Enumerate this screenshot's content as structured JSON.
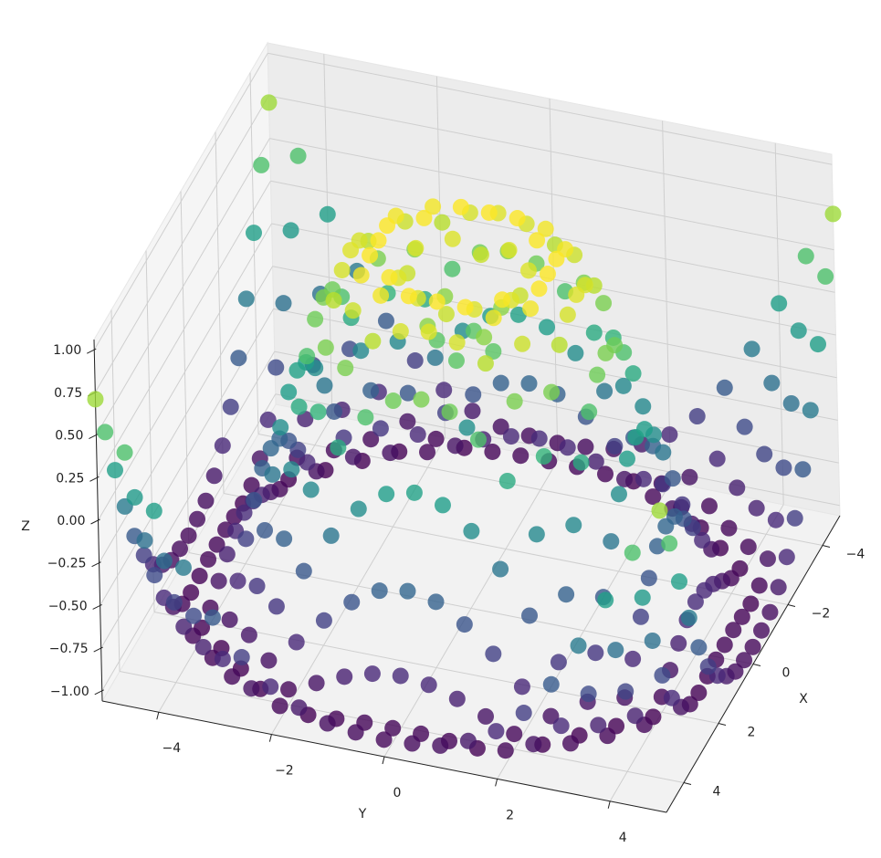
{
  "chart_data": {
    "type": "scatter3d",
    "x_label": "X",
    "y_label": "Y",
    "z_label": "Z",
    "colormap": "viridis",
    "x": [
      -5,
      -4.5,
      -4,
      -3.5,
      -3,
      -2.5,
      -2,
      -1.5,
      -1,
      -0.5,
      0,
      0.5,
      1,
      1.5,
      2,
      2.5,
      3,
      3.5,
      4,
      4.5,
      5
    ],
    "y": [
      -5,
      -4.5,
      -4,
      -3.5,
      -3,
      -2.5,
      -2,
      -1.5,
      -1,
      -0.5,
      0,
      0.5,
      1,
      1.5,
      2,
      2.5,
      3,
      3.5,
      4,
      4.5,
      5
    ],
    "z": [
      [
        0.71,
        0.43,
        0.12,
        -0.18,
        -0.44,
        -0.64,
        -0.78,
        -0.87,
        -0.93,
        -0.95,
        -0.96,
        -0.95,
        -0.93,
        -0.87,
        -0.78,
        -0.64,
        -0.44,
        -0.18,
        0.12,
        0.43,
        0.71
      ],
      [
        0.43,
        0.08,
        -0.26,
        -0.55,
        -0.77,
        -0.91,
        -0.98,
        -1,
        -0.99,
        -0.98,
        -0.98,
        -0.98,
        -0.99,
        -1,
        -0.98,
        -0.91,
        -0.77,
        -0.55,
        -0.26,
        0.08,
        0.43
      ],
      [
        0.12,
        -0.26,
        -0.59,
        -0.82,
        -0.96,
        -1,
        -0.97,
        -0.9,
        -0.83,
        -0.78,
        -0.76,
        -0.78,
        -0.83,
        -0.9,
        -0.97,
        -1,
        -0.96,
        -0.82,
        -0.59,
        -0.26,
        0.12
      ],
      [
        -0.18,
        -0.55,
        -0.82,
        -0.97,
        -1,
        -0.92,
        -0.78,
        -0.62,
        -0.48,
        -0.38,
        -0.35,
        -0.38,
        -0.48,
        -0.62,
        -0.78,
        -0.92,
        -1,
        -0.97,
        -0.82,
        -0.55,
        -0.18
      ],
      [
        -0.44,
        -0.77,
        -0.96,
        -1,
        -0.89,
        -0.69,
        -0.45,
        -0.21,
        -0.02,
        0.1,
        0.14,
        0.1,
        -0.02,
        -0.21,
        -0.45,
        -0.69,
        -0.89,
        -1,
        -0.96,
        -0.77,
        -0.44
      ],
      [
        -0.64,
        -0.91,
        -1,
        -0.92,
        -0.69,
        -0.38,
        -0.06,
        0.22,
        0.43,
        0.56,
        0.6,
        0.56,
        0.43,
        0.22,
        -0.06,
        -0.38,
        -0.69,
        -0.92,
        -1,
        -0.91,
        -0.64
      ],
      [
        -0.78,
        -0.98,
        -0.97,
        -0.78,
        -0.45,
        -0.06,
        0.31,
        0.6,
        0.79,
        0.88,
        0.91,
        0.88,
        0.79,
        0.6,
        0.31,
        -0.06,
        -0.45,
        -0.78,
        -0.97,
        -0.98,
        -0.78
      ],
      [
        -0.87,
        -1,
        -0.9,
        -0.62,
        -0.21,
        0.22,
        0.6,
        0.85,
        0.97,
        1,
        1,
        1,
        0.97,
        0.85,
        0.6,
        0.22,
        -0.21,
        -0.62,
        -0.9,
        -1,
        -0.87
      ],
      [
        -0.93,
        -0.99,
        -0.83,
        -0.48,
        -0.02,
        0.43,
        0.79,
        0.97,
        0.99,
        0.9,
        0.84,
        0.9,
        0.99,
        0.97,
        0.79,
        0.43,
        -0.02,
        -0.48,
        -0.83,
        -0.99,
        -0.93
      ],
      [
        -0.95,
        -0.98,
        -0.78,
        -0.38,
        0.1,
        0.56,
        0.88,
        1,
        0.9,
        0.65,
        0.48,
        0.65,
        0.9,
        1,
        0.88,
        0.56,
        0.1,
        -0.38,
        -0.78,
        -0.98,
        -0.95
      ],
      [
        -0.96,
        -0.98,
        -0.76,
        -0.35,
        0.14,
        0.6,
        0.91,
        1,
        0.84,
        0.48,
        0,
        0.48,
        0.84,
        1,
        0.91,
        0.6,
        0.14,
        -0.35,
        -0.76,
        -0.98,
        -0.96
      ],
      [
        -0.95,
        -0.98,
        -0.78,
        -0.38,
        0.1,
        0.56,
        0.88,
        1,
        0.9,
        0.65,
        0.48,
        0.65,
        0.9,
        1,
        0.88,
        0.56,
        0.1,
        -0.38,
        -0.78,
        -0.98,
        -0.95
      ],
      [
        -0.93,
        -0.99,
        -0.83,
        -0.48,
        -0.02,
        0.43,
        0.79,
        0.97,
        0.99,
        0.9,
        0.84,
        0.9,
        0.99,
        0.97,
        0.79,
        0.43,
        -0.02,
        -0.48,
        -0.83,
        -0.99,
        -0.93
      ],
      [
        -0.87,
        -1,
        -0.9,
        -0.62,
        -0.21,
        0.22,
        0.6,
        0.85,
        0.97,
        1,
        1,
        1,
        0.97,
        0.85,
        0.6,
        0.22,
        -0.21,
        -0.62,
        -0.9,
        -1,
        -0.87
      ],
      [
        -0.78,
        -0.98,
        -0.97,
        -0.78,
        -0.45,
        -0.06,
        0.31,
        0.6,
        0.79,
        0.88,
        0.91,
        0.88,
        0.79,
        0.6,
        0.31,
        -0.06,
        -0.45,
        -0.78,
        -0.97,
        -0.98,
        -0.78
      ],
      [
        -0.64,
        -0.91,
        -1,
        -0.92,
        -0.69,
        -0.38,
        -0.06,
        0.22,
        0.43,
        0.56,
        0.6,
        0.56,
        0.43,
        0.22,
        -0.06,
        -0.38,
        -0.69,
        -0.92,
        -1,
        -0.91,
        -0.64
      ],
      [
        -0.44,
        -0.77,
        -0.96,
        -1,
        -0.89,
        -0.69,
        -0.45,
        -0.21,
        -0.02,
        0.1,
        0.14,
        0.1,
        -0.02,
        -0.21,
        -0.45,
        -0.69,
        -0.89,
        -1,
        -0.96,
        -0.77,
        -0.44
      ],
      [
        -0.18,
        -0.55,
        -0.82,
        -0.97,
        -1,
        -0.92,
        -0.78,
        -0.62,
        -0.48,
        -0.38,
        -0.35,
        -0.38,
        -0.48,
        -0.62,
        -0.78,
        -0.92,
        -1,
        -0.97,
        -0.82,
        -0.55,
        -0.18
      ],
      [
        0.12,
        -0.26,
        -0.59,
        -0.82,
        -0.96,
        -1,
        -0.97,
        -0.9,
        -0.83,
        -0.78,
        -0.76,
        -0.78,
        -0.83,
        -0.9,
        -0.97,
        -1,
        -0.96,
        -0.82,
        -0.59,
        -0.26,
        0.12
      ],
      [
        0.43,
        0.08,
        -0.26,
        -0.55,
        -0.77,
        -0.91,
        -0.98,
        -1,
        -0.99,
        -0.98,
        -0.98,
        -0.98,
        -0.99,
        -1,
        -0.98,
        -0.91,
        -0.77,
        -0.55,
        -0.26,
        0.08,
        0.43
      ],
      [
        0.71,
        0.43,
        0.12,
        -0.18,
        -0.44,
        -0.64,
        -0.78,
        -0.87,
        -0.93,
        -0.95,
        -0.96,
        -0.95,
        -0.93,
        -0.87,
        -0.78,
        -0.64,
        -0.44,
        -0.18,
        0.12,
        0.43,
        0.71
      ]
    ],
    "xlim": [
      -5,
      5
    ],
    "ylim": [
      -5,
      5
    ],
    "zlim": [
      -1.06,
      1.06
    ],
    "xticks": [
      {
        "value": -4,
        "label": "−4"
      },
      {
        "value": -2,
        "label": "−2"
      },
      0,
      2,
      4
    ],
    "yticks": [
      {
        "value": -4,
        "label": "−4"
      },
      {
        "value": -2,
        "label": "−2"
      },
      0,
      2,
      4
    ],
    "zticks": [
      {
        "value": -1,
        "label": "−1.00"
      },
      {
        "value": -0.75,
        "label": "−0.75"
      },
      {
        "value": -0.5,
        "label": "−0.50"
      },
      {
        "value": -0.25,
        "label": "−0.25"
      },
      {
        "value": 0,
        "label": "0.00"
      },
      {
        "value": 0.25,
        "label": "0.25"
      },
      {
        "value": 0.5,
        "label": "0.50"
      },
      {
        "value": 0.75,
        "label": "0.75"
      },
      {
        "value": 1,
        "label": "1.00"
      }
    ],
    "grid": true
  }
}
